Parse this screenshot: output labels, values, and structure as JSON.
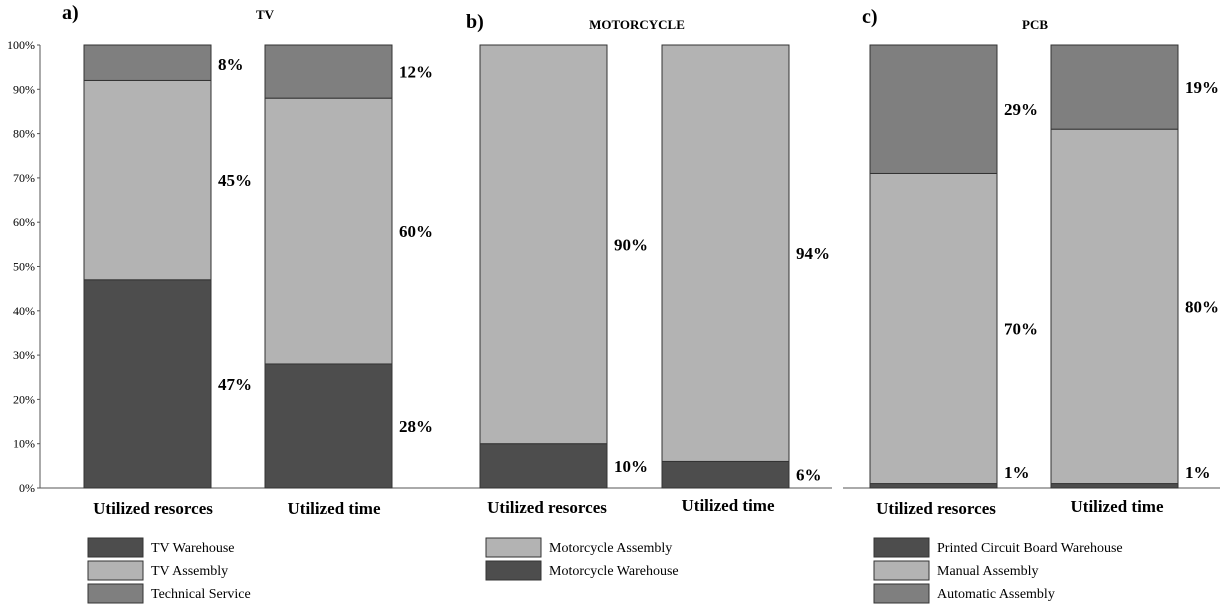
{
  "colors": {
    "dark": "#4d4d4d",
    "light": "#b3b3b3",
    "medium": "#7f7f7f",
    "stroke": "#333333"
  },
  "chart_data": [
    {
      "type": "bar",
      "stacked": true,
      "percent": true,
      "panel_letter": "a)",
      "title": "TV",
      "categories": [
        "Utilized resorces",
        "Utilized time"
      ],
      "series": [
        {
          "name": "TV Warehouse",
          "color": "dark",
          "values": [
            47,
            28
          ],
          "labels": [
            "47%",
            "28%"
          ]
        },
        {
          "name": "TV Assembly",
          "color": "light",
          "values": [
            45,
            60
          ],
          "labels": [
            "45%",
            "60%"
          ]
        },
        {
          "name": "Technical Service",
          "color": "medium",
          "values": [
            8,
            12
          ],
          "labels": [
            "8%",
            "12%"
          ]
        }
      ],
      "yaxis": {
        "visible": true,
        "ylim": [
          0,
          100
        ],
        "ticks": [
          "0%",
          "10%",
          "20%",
          "30%",
          "40%",
          "50%",
          "60%",
          "70%",
          "80%",
          "90%",
          "100%"
        ]
      },
      "legend": {
        "placement": "bottom",
        "order": [
          "TV Warehouse",
          "TV Assembly",
          "Technical Service"
        ]
      }
    },
    {
      "type": "bar",
      "stacked": true,
      "percent": true,
      "panel_letter": "b)",
      "title": "MOTORCYCLE",
      "categories": [
        "Utilized resorces",
        "Utilized time"
      ],
      "series": [
        {
          "name": "Motorcycle Warehouse",
          "color": "dark",
          "values": [
            10,
            6
          ],
          "labels": [
            "10%",
            "6%"
          ]
        },
        {
          "name": "Motorcycle Assembly",
          "color": "light",
          "values": [
            90,
            94
          ],
          "labels": [
            "90%",
            "94%"
          ]
        }
      ],
      "yaxis": {
        "visible": false,
        "ylim": [
          0,
          100
        ]
      },
      "legend": {
        "placement": "bottom",
        "order": [
          "Motorcycle Assembly",
          "Motorcycle Warehouse"
        ]
      }
    },
    {
      "type": "bar",
      "stacked": true,
      "percent": true,
      "panel_letter": "c)",
      "title": "PCB",
      "categories": [
        "Utilized resorces",
        "Utilized time"
      ],
      "series": [
        {
          "name": "Printed Circuit Board Warehouse",
          "color": "dark",
          "values": [
            1,
            1
          ],
          "labels": [
            "1%",
            "1%"
          ]
        },
        {
          "name": "Manual Assembly",
          "color": "light",
          "values": [
            70,
            80
          ],
          "labels": [
            "70%",
            "80%"
          ]
        },
        {
          "name": "Automatic Assembly",
          "color": "medium",
          "values": [
            29,
            19
          ],
          "labels": [
            "29%",
            "19%"
          ]
        }
      ],
      "yaxis": {
        "visible": false,
        "ylim": [
          0,
          100
        ]
      },
      "legend": {
        "placement": "bottom",
        "order": [
          "Printed Circuit Board Warehouse",
          "Manual Assembly",
          "Automatic Assembly"
        ]
      }
    }
  ]
}
